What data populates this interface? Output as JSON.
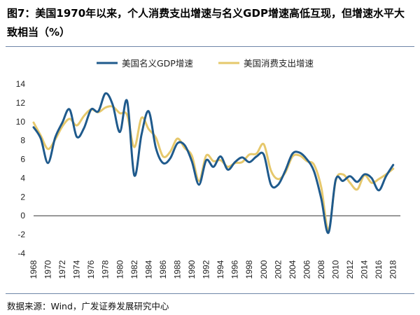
{
  "title": "图7：美国1970年以来，个人消费支出增速与名义GDP增速高低互现，但增速水平大致相当（%）",
  "source": "数据来源：Wind，广发证券发展研究中心",
  "colors": {
    "gdp": "#1f5a8c",
    "pce": "#e6c86c",
    "axis": "#333333"
  },
  "chart_data": {
    "type": "line",
    "title": "图7：美国1970年以来，个人消费支出增速与名义GDP增速高低互现，但增速水平大致相当（%）",
    "xlabel": "",
    "ylabel": "",
    "xlim": [
      1968,
      2019
    ],
    "ylim": [
      -4,
      14
    ],
    "yticks": [
      -4,
      -2,
      0,
      2,
      4,
      6,
      8,
      10,
      12,
      14
    ],
    "xticks": [
      "1968",
      "1970",
      "1972",
      "1974",
      "1976",
      "1978",
      "1980",
      "1982",
      "1984",
      "1986",
      "1988",
      "1990",
      "1992",
      "1994",
      "1996",
      "1998",
      "2000",
      "2002",
      "2004",
      "2006",
      "2008",
      "2010",
      "2012",
      "2014",
      "2016",
      "2018"
    ],
    "legend_position": "top",
    "grid": false,
    "series": [
      {
        "name": "美国名义GDP增速",
        "color": "#1f5a8c",
        "points": [
          [
            1968,
            9.4
          ],
          [
            1969,
            8.2
          ],
          [
            1970,
            5.6
          ],
          [
            1971,
            8.3
          ],
          [
            1972,
            9.9
          ],
          [
            1973,
            11.3
          ],
          [
            1974,
            8.4
          ],
          [
            1975,
            9.3
          ],
          [
            1976,
            11.3
          ],
          [
            1977,
            11.1
          ],
          [
            1978,
            13.0
          ],
          [
            1979,
            11.8
          ],
          [
            1980,
            8.9
          ],
          [
            1981,
            12.2
          ],
          [
            1982,
            4.3
          ],
          [
            1983,
            8.6
          ],
          [
            1984,
            11.1
          ],
          [
            1985,
            7.2
          ],
          [
            1986,
            5.6
          ],
          [
            1987,
            6.1
          ],
          [
            1988,
            7.7
          ],
          [
            1989,
            7.5
          ],
          [
            1990,
            5.8
          ],
          [
            1991,
            3.3
          ],
          [
            1992,
            5.9
          ],
          [
            1993,
            5.2
          ],
          [
            1994,
            6.3
          ],
          [
            1995,
            4.9
          ],
          [
            1996,
            5.7
          ],
          [
            1997,
            6.2
          ],
          [
            1998,
            5.7
          ],
          [
            1999,
            6.3
          ],
          [
            2000,
            6.5
          ],
          [
            2001,
            3.3
          ],
          [
            2002,
            3.3
          ],
          [
            2003,
            4.8
          ],
          [
            2004,
            6.6
          ],
          [
            2005,
            6.7
          ],
          [
            2006,
            6.0
          ],
          [
            2007,
            4.7
          ],
          [
            2008,
            1.8
          ],
          [
            2009,
            -1.8
          ],
          [
            2010,
            3.8
          ],
          [
            2011,
            3.7
          ],
          [
            2012,
            4.2
          ],
          [
            2013,
            3.6
          ],
          [
            2014,
            4.4
          ],
          [
            2015,
            4.0
          ],
          [
            2016,
            2.7
          ],
          [
            2017,
            4.2
          ],
          [
            2018,
            5.4
          ]
        ]
      },
      {
        "name": "美国消费支出增速",
        "color": "#e6c86c",
        "points": [
          [
            1968,
            9.9
          ],
          [
            1969,
            8.5
          ],
          [
            1970,
            7.1
          ],
          [
            1971,
            8.1
          ],
          [
            1972,
            9.5
          ],
          [
            1973,
            10.3
          ],
          [
            1974,
            9.6
          ],
          [
            1975,
            10.6
          ],
          [
            1976,
            11.3
          ],
          [
            1977,
            11.0
          ],
          [
            1978,
            11.5
          ],
          [
            1979,
            11.6
          ],
          [
            1980,
            10.9
          ],
          [
            1981,
            10.7
          ],
          [
            1982,
            7.3
          ],
          [
            1983,
            10.4
          ],
          [
            1984,
            9.2
          ],
          [
            1985,
            8.3
          ],
          [
            1986,
            6.3
          ],
          [
            1987,
            6.8
          ],
          [
            1988,
            8.2
          ],
          [
            1989,
            7.2
          ],
          [
            1990,
            6.4
          ],
          [
            1991,
            3.7
          ],
          [
            1992,
            6.4
          ],
          [
            1993,
            5.8
          ],
          [
            1994,
            5.9
          ],
          [
            1995,
            5.2
          ],
          [
            1996,
            5.6
          ],
          [
            1997,
            5.7
          ],
          [
            1998,
            6.5
          ],
          [
            1999,
            6.6
          ],
          [
            2000,
            7.6
          ],
          [
            2001,
            4.8
          ],
          [
            2002,
            3.9
          ],
          [
            2003,
            4.6
          ],
          [
            2004,
            6.3
          ],
          [
            2005,
            6.4
          ],
          [
            2006,
            5.8
          ],
          [
            2007,
            5.4
          ],
          [
            2008,
            3.0
          ],
          [
            2009,
            -1.5
          ],
          [
            2010,
            3.7
          ],
          [
            2011,
            4.4
          ],
          [
            2012,
            3.5
          ],
          [
            2013,
            2.8
          ],
          [
            2014,
            4.3
          ],
          [
            2015,
            3.5
          ],
          [
            2016,
            3.9
          ],
          [
            2017,
            4.4
          ],
          [
            2018,
            5.0
          ]
        ]
      }
    ]
  }
}
